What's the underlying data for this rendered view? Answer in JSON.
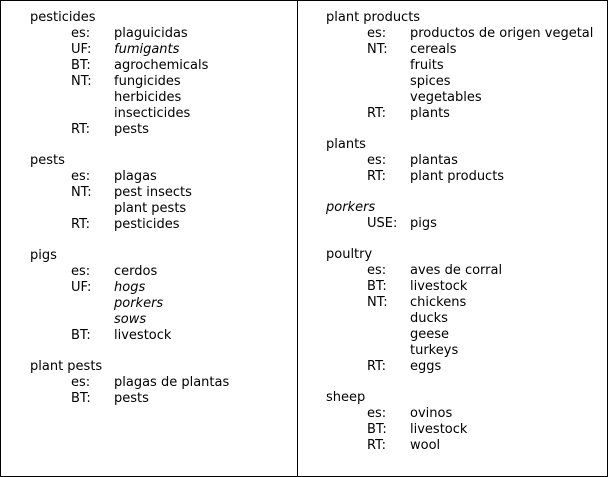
{
  "left_column": [
    {
      "term": "pesticides",
      "term_italic": false,
      "relations": [
        {
          "code": "es:",
          "values": [
            "plaguicidas"
          ]
        },
        {
          "code": "UF:",
          "values": [
            "fumigants"
          ],
          "italic": true
        },
        {
          "code": "BT:",
          "values": [
            "agrochemicals"
          ]
        },
        {
          "code": "NT:",
          "values": [
            "fungicides",
            "herbicides",
            "insecticides"
          ]
        },
        {
          "code": "RT:",
          "values": [
            "pests"
          ]
        }
      ]
    },
    {
      "term": "pests",
      "term_italic": false,
      "relations": [
        {
          "code": "es:",
          "values": [
            "plagas"
          ]
        },
        {
          "code": "NT:",
          "values": [
            "pest insects",
            "plant pests"
          ]
        },
        {
          "code": "RT:",
          "values": [
            "pesticides"
          ]
        }
      ]
    },
    {
      "term": "pigs",
      "term_italic": false,
      "relations": [
        {
          "code": "es:",
          "values": [
            "cerdos"
          ]
        },
        {
          "code": "UF:",
          "values": [
            "hogs",
            "porkers",
            "sows"
          ],
          "italic": true
        },
        {
          "code": "BT:",
          "values": [
            "livestock"
          ]
        }
      ]
    },
    {
      "term": "plant pests",
      "term_italic": false,
      "relations": [
        {
          "code": "es:",
          "values": [
            "plagas de plantas"
          ]
        },
        {
          "code": "BT:",
          "values": [
            "pests"
          ]
        }
      ]
    }
  ],
  "right_column": [
    {
      "term": "plant products",
      "term_italic": false,
      "relations": [
        {
          "code": "es:",
          "values": [
            "productos de origen vegetal"
          ]
        },
        {
          "code": "NT:",
          "values": [
            "cereals",
            "fruits",
            "spices",
            "vegetables"
          ]
        },
        {
          "code": "RT:",
          "values": [
            "plants"
          ]
        }
      ]
    },
    {
      "term": "plants",
      "term_italic": false,
      "relations": [
        {
          "code": "es:",
          "values": [
            "plantas"
          ]
        },
        {
          "code": "RT:",
          "values": [
            "plant products"
          ]
        }
      ]
    },
    {
      "term": "porkers",
      "term_italic": true,
      "relations": [
        {
          "code": "USE:",
          "values": [
            "pigs"
          ]
        }
      ]
    },
    {
      "term": "poultry",
      "term_italic": false,
      "relations": [
        {
          "code": "es:",
          "values": [
            "aves de corral"
          ]
        },
        {
          "code": "BT:",
          "values": [
            "livestock"
          ]
        },
        {
          "code": "NT:",
          "values": [
            "chickens",
            "ducks",
            "geese",
            "turkeys"
          ]
        },
        {
          "code": "RT:",
          "values": [
            "eggs"
          ]
        }
      ]
    },
    {
      "term": "sheep",
      "term_italic": false,
      "relations": [
        {
          "code": "es:",
          "values": [
            "ovinos"
          ]
        },
        {
          "code": "BT:",
          "values": [
            "livestock"
          ]
        },
        {
          "code": "RT:",
          "values": [
            "wool"
          ]
        }
      ]
    }
  ]
}
